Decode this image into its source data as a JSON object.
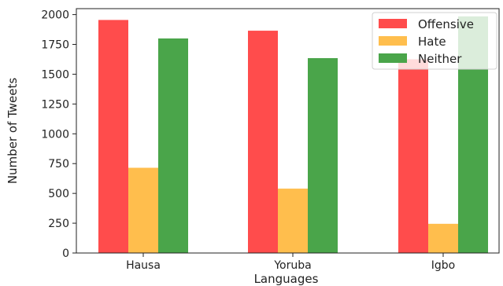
{
  "chart_data": {
    "type": "bar",
    "title": "",
    "xlabel": "Languages",
    "ylabel": "Number of Tweets",
    "categories": [
      "Hausa",
      "Yoruba",
      "Igbo"
    ],
    "series": [
      {
        "name": "Offensive",
        "color": "#ff4c4c",
        "values": [
          1955,
          1865,
          1625
        ]
      },
      {
        "name": "Hate",
        "color": "#ffbe4d",
        "values": [
          715,
          540,
          245
        ]
      },
      {
        "name": "Neither",
        "color": "#4aa54a",
        "values": [
          1800,
          1635,
          1985
        ]
      }
    ],
    "ylim": [
      0,
      2050
    ],
    "yticks": [
      0,
      250,
      500,
      750,
      1000,
      1250,
      1500,
      1750,
      2000
    ],
    "legend_position": "top-right",
    "grid": false
  }
}
